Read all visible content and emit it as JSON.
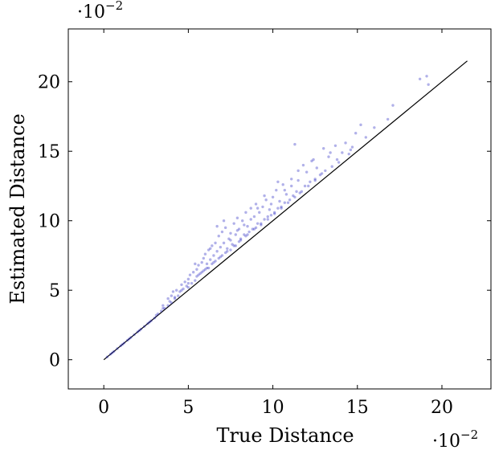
{
  "chart_data": {
    "type": "scatter",
    "xlabel": "True Distance",
    "ylabel": "Estimated Distance",
    "x_multiplier": "·10",
    "x_multiplier_exp": "−2",
    "y_multiplier": "·10",
    "y_multiplier_exp": "−2",
    "xlim": [
      -2.1,
      22.9
    ],
    "ylim": [
      -2.1,
      23.8
    ],
    "x_ticks": [
      {
        "value": 0,
        "label": "0"
      },
      {
        "value": 5,
        "label": "5"
      },
      {
        "value": 10,
        "label": "10"
      },
      {
        "value": 15,
        "label": "15"
      },
      {
        "value": 20,
        "label": "20"
      }
    ],
    "y_ticks": [
      {
        "value": 0,
        "label": "0"
      },
      {
        "value": 5,
        "label": "5"
      },
      {
        "value": 10,
        "label": "10"
      },
      {
        "value": 15,
        "label": "15"
      },
      {
        "value": 20,
        "label": "20"
      }
    ],
    "reference_line": {
      "x": [
        0,
        21.5
      ],
      "y": [
        0,
        21.5
      ],
      "color": "#000000"
    },
    "series_color": "#1f1fbf",
    "grid": false,
    "legend": "none",
    "series": [
      {
        "points": [
          [
            0.2,
            0.2
          ],
          [
            0.4,
            0.4
          ],
          [
            0.6,
            0.6
          ],
          [
            0.8,
            0.8
          ],
          [
            1.0,
            1.0
          ],
          [
            1.2,
            1.2
          ],
          [
            1.4,
            1.4
          ],
          [
            1.6,
            1.6
          ],
          [
            1.8,
            1.8
          ],
          [
            2.0,
            2.0
          ],
          [
            2.2,
            2.2
          ],
          [
            2.4,
            2.4
          ],
          [
            2.6,
            2.6
          ],
          [
            2.8,
            2.8
          ],
          [
            3.0,
            3.0
          ],
          [
            3.2,
            3.3
          ],
          [
            3.4,
            3.5
          ],
          [
            3.6,
            3.7
          ],
          [
            3.8,
            3.9
          ],
          [
            4.0,
            4.1
          ],
          [
            0.5,
            0.5
          ],
          [
            1.1,
            1.1
          ],
          [
            1.5,
            1.5
          ],
          [
            2.1,
            2.1
          ],
          [
            2.7,
            2.7
          ],
          [
            3.1,
            3.2
          ],
          [
            3.5,
            3.7
          ],
          [
            3.9,
            4.2
          ],
          [
            4.2,
            4.4
          ],
          [
            4.4,
            4.6
          ],
          [
            3.5,
            3.9
          ],
          [
            3.8,
            4.4
          ],
          [
            4.0,
            4.6
          ],
          [
            4.1,
            4.9
          ],
          [
            4.3,
            5.0
          ],
          [
            4.5,
            4.9
          ],
          [
            4.6,
            5.4
          ],
          [
            4.7,
            5.1
          ],
          [
            4.8,
            5.6
          ],
          [
            4.9,
            5.3
          ],
          [
            5.0,
            5.2
          ],
          [
            5.0,
            5.8
          ],
          [
            5.1,
            6.1
          ],
          [
            5.2,
            5.5
          ],
          [
            5.3,
            6.3
          ],
          [
            5.4,
            5.7
          ],
          [
            5.5,
            6.5
          ],
          [
            5.5,
            6.0
          ],
          [
            5.6,
            6.8
          ],
          [
            5.7,
            6.2
          ],
          [
            5.8,
            7.0
          ],
          [
            5.8,
            6.3
          ],
          [
            5.9,
            7.3
          ],
          [
            6.0,
            6.5
          ],
          [
            6.0,
            7.6
          ],
          [
            6.1,
            6.9
          ],
          [
            6.2,
            7.9
          ],
          [
            6.2,
            6.6
          ],
          [
            6.3,
            7.2
          ],
          [
            6.4,
            8.2
          ],
          [
            6.4,
            6.9
          ],
          [
            6.5,
            7.5
          ],
          [
            6.6,
            8.4
          ],
          [
            6.6,
            7.1
          ],
          [
            6.7,
            7.8
          ],
          [
            6.8,
            8.9
          ],
          [
            6.8,
            7.3
          ],
          [
            6.9,
            8.1
          ],
          [
            7.0,
            9.2
          ],
          [
            7.0,
            7.5
          ],
          [
            7.1,
            8.4
          ],
          [
            7.2,
            7.7
          ],
          [
            7.2,
            9.5
          ],
          [
            7.3,
            8.0
          ],
          [
            7.4,
            8.7
          ],
          [
            7.5,
            7.9
          ],
          [
            7.5,
            9.1
          ],
          [
            7.6,
            8.3
          ],
          [
            7.7,
            9.8
          ],
          [
            7.8,
            8.2
          ],
          [
            7.8,
            9.0
          ],
          [
            7.9,
            10.2
          ],
          [
            8.0,
            8.5
          ],
          [
            8.0,
            9.4
          ],
          [
            8.1,
            8.7
          ],
          [
            8.2,
            10.0
          ],
          [
            8.3,
            9.0
          ],
          [
            8.4,
            10.6
          ],
          [
            8.4,
            8.9
          ],
          [
            8.5,
            9.6
          ],
          [
            8.6,
            9.2
          ],
          [
            8.7,
            10.9
          ],
          [
            8.8,
            9.4
          ],
          [
            8.9,
            10.3
          ],
          [
            9.0,
            9.5
          ],
          [
            9.0,
            11.2
          ],
          [
            9.1,
            9.8
          ],
          [
            9.2,
            10.6
          ],
          [
            9.3,
            9.8
          ],
          [
            9.4,
            11.0
          ],
          [
            9.5,
            10.1
          ],
          [
            9.6,
            11.5
          ],
          [
            9.7,
            10.3
          ],
          [
            9.8,
            10.8
          ],
          [
            9.9,
            10.4
          ],
          [
            10.0,
            11.7
          ],
          [
            10.1,
            10.6
          ],
          [
            10.2,
            12.2
          ],
          [
            10.3,
            10.9
          ],
          [
            10.4,
            11.4
          ],
          [
            10.5,
            11.0
          ],
          [
            10.6,
            12.6
          ],
          [
            10.7,
            11.3
          ],
          [
            10.8,
            11.9
          ],
          [
            11.0,
            11.5
          ],
          [
            11.1,
            13.0
          ],
          [
            11.2,
            11.8
          ],
          [
            11.3,
            15.5
          ],
          [
            11.4,
            12.1
          ],
          [
            11.5,
            12.9
          ],
          [
            11.6,
            12.0
          ],
          [
            11.8,
            14.0
          ],
          [
            11.9,
            12.5
          ],
          [
            12.0,
            13.5
          ],
          [
            12.2,
            12.8
          ],
          [
            12.3,
            14.3
          ],
          [
            12.5,
            13.0
          ],
          [
            12.6,
            13.8
          ],
          [
            12.8,
            13.3
          ],
          [
            13.0,
            15.2
          ],
          [
            13.1,
            13.6
          ],
          [
            13.3,
            14.6
          ],
          [
            13.5,
            13.9
          ],
          [
            13.7,
            15.4
          ],
          [
            13.9,
            14.2
          ],
          [
            14.1,
            14.9
          ],
          [
            14.3,
            15.6
          ],
          [
            14.5,
            14.8
          ],
          [
            14.7,
            15.3
          ],
          [
            14.9,
            16.3
          ],
          [
            15.2,
            16.9
          ],
          [
            15.5,
            16.0
          ],
          [
            16.0,
            16.7
          ],
          [
            16.8,
            17.3
          ],
          [
            17.1,
            18.3
          ],
          [
            18.7,
            20.2
          ],
          [
            19.1,
            20.4
          ],
          [
            19.2,
            19.8
          ],
          [
            5.6,
            6.1
          ],
          [
            6.1,
            6.6
          ],
          [
            6.5,
            7.0
          ],
          [
            6.9,
            7.4
          ],
          [
            7.3,
            7.8
          ],
          [
            7.7,
            8.2
          ],
          [
            8.1,
            8.6
          ],
          [
            8.5,
            9.0
          ],
          [
            8.9,
            9.4
          ],
          [
            9.3,
            9.7
          ],
          [
            9.7,
            10.1
          ],
          [
            10.1,
            10.5
          ],
          [
            10.5,
            10.9
          ],
          [
            10.9,
            11.3
          ],
          [
            11.3,
            11.7
          ],
          [
            11.7,
            12.1
          ],
          [
            12.1,
            12.5
          ],
          [
            12.5,
            12.9
          ],
          [
            4.2,
            4.5
          ],
          [
            4.6,
            5.0
          ],
          [
            5.0,
            5.5
          ],
          [
            5.4,
            6.9
          ],
          [
            5.9,
            6.4
          ],
          [
            6.3,
            8.0
          ],
          [
            6.7,
            9.6
          ],
          [
            7.1,
            10.0
          ],
          [
            7.5,
            8.6
          ],
          [
            7.9,
            9.3
          ],
          [
            8.3,
            9.7
          ],
          [
            8.7,
            10.1
          ],
          [
            9.1,
            10.9
          ],
          [
            9.5,
            11.8
          ],
          [
            9.9,
            11.2
          ],
          [
            10.3,
            12.8
          ],
          [
            10.7,
            12.2
          ],
          [
            11.1,
            12.5
          ],
          [
            11.5,
            13.6
          ],
          [
            12.4,
            14.4
          ],
          [
            12.9,
            13.4
          ],
          [
            13.4,
            14.9
          ],
          [
            13.8,
            14.4
          ],
          [
            14.6,
            15.1
          ]
        ]
      }
    ]
  }
}
